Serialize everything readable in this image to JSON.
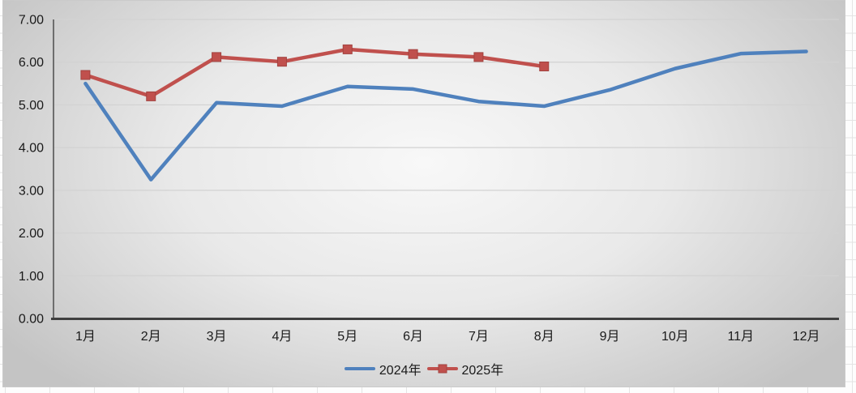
{
  "chart_data": {
    "type": "line",
    "title": "",
    "xlabel": "",
    "ylabel": "",
    "categories": [
      "1月",
      "2月",
      "3月",
      "4月",
      "5月",
      "6月",
      "7月",
      "8月",
      "9月",
      "10月",
      "11月",
      "12月"
    ],
    "series": [
      {
        "name": "2024年",
        "color": "#4F81BD",
        "marker": "none",
        "values": [
          5.5,
          3.25,
          5.05,
          4.97,
          5.43,
          5.37,
          5.08,
          4.97,
          5.35,
          5.85,
          6.2,
          6.25
        ]
      },
      {
        "name": "2025年",
        "color": "#C0504D",
        "marker": "square",
        "marker_border": "#A2423F",
        "values": [
          5.7,
          5.2,
          6.12,
          6.01,
          6.3,
          6.19,
          6.12,
          5.9
        ]
      }
    ],
    "ylim": [
      0,
      7
    ],
    "yticks": [
      "0.00",
      "1.00",
      "2.00",
      "3.00",
      "4.00",
      "5.00",
      "6.00",
      "7.00"
    ],
    "grid": true,
    "legend_position": "bottom"
  },
  "colors": {
    "plot_gridline": "#D2D2D2",
    "x_axis_line": "#3F3F3F",
    "y_axis_line": "#6E6E6E",
    "tick_text": "#1A1A1A",
    "chart_bg_center": "#F8F8F8",
    "chart_bg_mid": "#E9E9E9",
    "chart_bg_edge": "#C4C4C4",
    "sheet_grid_line": "#E4E4E4"
  }
}
